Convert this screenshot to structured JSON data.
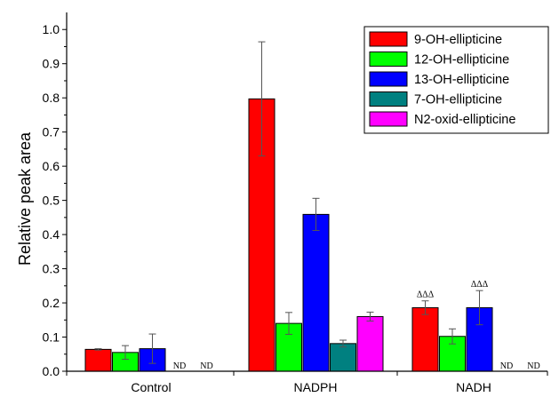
{
  "chart_data": {
    "type": "bar",
    "title": "",
    "xlabel": "",
    "ylabel": "Relative peak area",
    "ylim": [
      0.0,
      1.05
    ],
    "yticks": [
      "0.0",
      "0.1",
      "0.2",
      "0.3",
      "0.4",
      "0.5",
      "0.6",
      "0.7",
      "0.8",
      "0.9",
      "1.0"
    ],
    "categories": [
      "Control",
      "NADPH",
      "NADH"
    ],
    "series": [
      {
        "name": "9-OH-ellipticine",
        "color": "#ff0000",
        "values": [
          0.064,
          0.797,
          0.186
        ],
        "errors": [
          0.002,
          0.167,
          0.02
        ]
      },
      {
        "name": "12-OH-ellipticine",
        "color": "#00ff00",
        "values": [
          0.055,
          0.14,
          0.102
        ],
        "errors": [
          0.02,
          0.032,
          0.022
        ]
      },
      {
        "name": "13-OH-ellipticine",
        "color": "#0000ff",
        "values": [
          0.066,
          0.459,
          0.186
        ],
        "errors": [
          0.043,
          0.047,
          0.05
        ]
      },
      {
        "name": "7-OH-ellipticine",
        "color": "#008080",
        "values": [
          null,
          0.081,
          null
        ],
        "errors": [
          null,
          0.01,
          null
        ]
      },
      {
        "name": "N2-oxid-ellipticine",
        "color": "#ff00ff",
        "values": [
          null,
          0.16,
          null
        ],
        "errors": [
          null,
          0.013,
          null
        ]
      }
    ],
    "not_detected_label": "ND",
    "not_detected": [
      {
        "category": "Control",
        "series": "7-OH-ellipticine"
      },
      {
        "category": "Control",
        "series": "N2-oxid-ellipticine"
      },
      {
        "category": "NADH",
        "series": "7-OH-ellipticine"
      },
      {
        "category": "NADH",
        "series": "N2-oxid-ellipticine"
      }
    ],
    "significance_label": "ΔΔΔ",
    "significance": [
      {
        "category": "NADH",
        "series": "9-OH-ellipticine"
      },
      {
        "category": "NADH",
        "series": "13-OH-ellipticine"
      }
    ],
    "legend_position": "top-right",
    "grid": false
  }
}
